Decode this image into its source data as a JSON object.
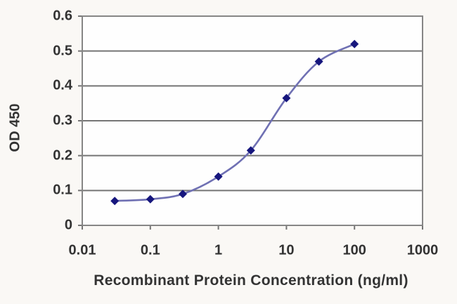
{
  "chart_data": {
    "type": "line",
    "title": "",
    "xlabel": "Recombinant Protein Concentration (ng/ml)",
    "ylabel": "OD 450",
    "x_scale": "log",
    "xlim": [
      0.01,
      1000
    ],
    "ylim": [
      0,
      0.6
    ],
    "x_ticks": [
      0.01,
      0.1,
      1,
      10,
      100,
      1000
    ],
    "x_tick_labels": [
      "0.01",
      "0.1",
      "1",
      "10",
      "100",
      "1000"
    ],
    "y_ticks": [
      0,
      0.1,
      0.2,
      0.3,
      0.4,
      0.5,
      0.6
    ],
    "y_tick_labels": [
      "0",
      "0.1",
      "0.2",
      "0.3",
      "0.4",
      "0.5",
      "0.6"
    ],
    "grid": "horizontal",
    "legend": "none",
    "series": [
      {
        "name": "OD 450",
        "x": [
          0.03,
          0.1,
          0.3,
          1,
          3,
          10,
          30,
          100
        ],
        "y": [
          0.07,
          0.075,
          0.09,
          0.14,
          0.215,
          0.365,
          0.47,
          0.52
        ],
        "marker": "diamond",
        "smooth": true
      }
    ],
    "colors": {
      "line_color": "#6f70b3",
      "marker_color": "#16167d",
      "grid_color": "#757575",
      "axis_color": "#868686",
      "text_color": "#333333",
      "plot_background": "#fefefe",
      "page_background": "#faf8f5"
    }
  }
}
